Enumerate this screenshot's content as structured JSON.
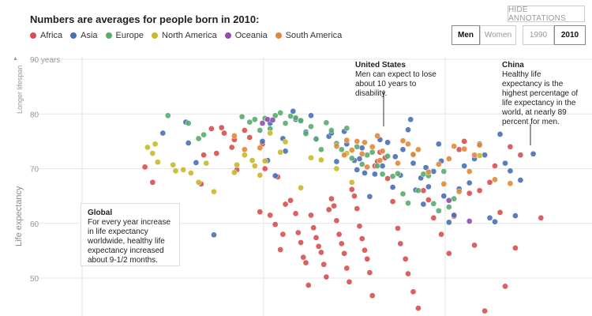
{
  "heading": "Numbers are averages for people born in 2010:",
  "legend": [
    {
      "label": "Africa",
      "color": "#d94f4f"
    },
    {
      "label": "Asia",
      "color": "#4a6fb5"
    },
    {
      "label": "Europe",
      "color": "#5aab6e"
    },
    {
      "label": "North America",
      "color": "#c9b82a"
    },
    {
      "label": "Oceania",
      "color": "#8e4fb0"
    },
    {
      "label": "South America",
      "color": "#e0883a"
    }
  ],
  "controls": {
    "hide_annotations": "HIDE ANNOTATIONS",
    "men": "Men",
    "women": "Women",
    "year_1990": "1990",
    "year_2010": "2010"
  },
  "y_axis": {
    "label": "Life expectancy",
    "sublabel": "Longer lifespan",
    "ticks": [
      "90 years",
      "80",
      "70",
      "60",
      "50"
    ]
  },
  "annotations": {
    "us": {
      "title": "United States",
      "text": "Men can expect to lose about 10 years to disability."
    },
    "china": {
      "title": "China",
      "text": "Healthy life expectancy is the highest percentage of life expectancy in the world, at nearly 89 percent for men."
    },
    "global": {
      "title": "Global",
      "text": "For every year increase in life expectancy worldwide, healthy life expectancy increased about 9-1/2 months."
    }
  },
  "chart_data": {
    "type": "scatter",
    "ylabel": "Life expectancy",
    "ylim": [
      45,
      90
    ],
    "grid": true,
    "series": [
      {
        "name": "Africa",
        "color": "#d94f4f",
        "points": [
          [
            22.5,
            70.3
          ],
          [
            24,
            67.5
          ],
          [
            33.5,
            67.2
          ],
          [
            34,
            72.5
          ],
          [
            35.5,
            77.3
          ],
          [
            36.5,
            72.8
          ],
          [
            37.5,
            77.5
          ],
          [
            38,
            76.5
          ],
          [
            39.5,
            73.9
          ],
          [
            40,
            75.3
          ],
          [
            40.5,
            69.8
          ],
          [
            42,
            77
          ],
          [
            43,
            75.7
          ],
          [
            45,
            62.1
          ],
          [
            45.5,
            74.5
          ],
          [
            46,
            70
          ],
          [
            47,
            61.5
          ],
          [
            48,
            59.8
          ],
          [
            48.5,
            68.5
          ],
          [
            49,
            55.2
          ],
          [
            49.5,
            58
          ],
          [
            50,
            63.5
          ],
          [
            51,
            64.2
          ],
          [
            52,
            61.8
          ],
          [
            52.5,
            58.3
          ],
          [
            53,
            56.5
          ],
          [
            53.5,
            53.8
          ],
          [
            54,
            52.8
          ],
          [
            54.5,
            48.7
          ],
          [
            55,
            61.5
          ],
          [
            55.5,
            59.2
          ],
          [
            56,
            57.4
          ],
          [
            56.5,
            55.8
          ],
          [
            57,
            54.7
          ],
          [
            57.5,
            52.5
          ],
          [
            58,
            50.2
          ],
          [
            58.5,
            62.5
          ],
          [
            59,
            64.5
          ],
          [
            59.5,
            63.2
          ],
          [
            60,
            60.5
          ],
          [
            60.5,
            58
          ],
          [
            61,
            56.3
          ],
          [
            61.5,
            54.5
          ],
          [
            62,
            51.8
          ],
          [
            62.5,
            49.3
          ],
          [
            63,
            66.2
          ],
          [
            63.5,
            65
          ],
          [
            64,
            62.7
          ],
          [
            64.5,
            59.5
          ],
          [
            65,
            57.2
          ],
          [
            65.5,
            55.1
          ],
          [
            66,
            53.5
          ],
          [
            66.5,
            51
          ],
          [
            67,
            46.8
          ],
          [
            67.5,
            70.5
          ],
          [
            68,
            71.3
          ],
          [
            68.5,
            73
          ],
          [
            69.5,
            72
          ],
          [
            70,
            68.2
          ],
          [
            71,
            64
          ],
          [
            72,
            59.1
          ],
          [
            72.5,
            56.3
          ],
          [
            73.5,
            53.5
          ],
          [
            74,
            50.8
          ],
          [
            75,
            47.5
          ],
          [
            76,
            44.5
          ],
          [
            77,
            66
          ],
          [
            78,
            64.3
          ],
          [
            79,
            61
          ],
          [
            80.5,
            58
          ],
          [
            82,
            54.5
          ],
          [
            83,
            61.3
          ],
          [
            84,
            73.5
          ],
          [
            85,
            75
          ],
          [
            86,
            65.5
          ],
          [
            87,
            56
          ],
          [
            88,
            66
          ],
          [
            89,
            44
          ],
          [
            90,
            67.5
          ],
          [
            91,
            70.5
          ],
          [
            92,
            62
          ],
          [
            93,
            48.5
          ],
          [
            94,
            74
          ],
          [
            95,
            55.5
          ],
          [
            96,
            72.5
          ],
          [
            100,
            61
          ]
        ]
      },
      {
        "name": "Asia",
        "color": "#4a6fb5",
        "points": [
          [
            26,
            76.5
          ],
          [
            30.5,
            78.5
          ],
          [
            31,
            74.7
          ],
          [
            32.5,
            71.1
          ],
          [
            36,
            57.9
          ],
          [
            45.5,
            75
          ],
          [
            46.5,
            71.5
          ],
          [
            47,
            78.3
          ],
          [
            48,
            68.7
          ],
          [
            49.5,
            75.5
          ],
          [
            50,
            73.2
          ],
          [
            51.5,
            80.5
          ],
          [
            52,
            79
          ],
          [
            53,
            78.7
          ],
          [
            54,
            76.7
          ],
          [
            55,
            79.7
          ],
          [
            56,
            75.5
          ],
          [
            58.5,
            75.9
          ],
          [
            59,
            76.5
          ],
          [
            60,
            71.3
          ],
          [
            61.5,
            76.8
          ],
          [
            62,
            74.5
          ],
          [
            63.5,
            71.5
          ],
          [
            64,
            69.8
          ],
          [
            64.5,
            71.8
          ],
          [
            65,
            73.8
          ],
          [
            65.5,
            69.2
          ],
          [
            66.5,
            64.9
          ],
          [
            67.5,
            69
          ],
          [
            68.5,
            75.3
          ],
          [
            69,
            70.5
          ],
          [
            70,
            74.8
          ],
          [
            71,
            66.6
          ],
          [
            71.5,
            72.2
          ],
          [
            72.5,
            68.8
          ],
          [
            73,
            73.5
          ],
          [
            74,
            77.1
          ],
          [
            74.5,
            79
          ],
          [
            75,
            71
          ],
          [
            75.5,
            66.1
          ],
          [
            76.5,
            68.3
          ],
          [
            77,
            63.5
          ],
          [
            77.5,
            70.2
          ],
          [
            78,
            66.7
          ],
          [
            79,
            69.5
          ],
          [
            80,
            74.5
          ],
          [
            80.5,
            71.4
          ],
          [
            81,
            65
          ],
          [
            82,
            60.2
          ],
          [
            83,
            61.5
          ],
          [
            84,
            66.3
          ],
          [
            85,
            70.5
          ],
          [
            86,
            67.4
          ],
          [
            87,
            71.8
          ],
          [
            88,
            74.5
          ],
          [
            89,
            72.5
          ],
          [
            90,
            61
          ],
          [
            91,
            60.3
          ],
          [
            92,
            76.3
          ],
          [
            93,
            71
          ],
          [
            94,
            69.6
          ],
          [
            95,
            61.4
          ],
          [
            96,
            67.9
          ],
          [
            98.5,
            72.7
          ]
        ]
      },
      {
        "name": "Europe",
        "color": "#5aab6e",
        "points": [
          [
            27,
            79.7
          ],
          [
            31,
            78.3
          ],
          [
            33,
            75.5
          ],
          [
            34,
            76.2
          ],
          [
            41.5,
            79.5
          ],
          [
            43,
            78.5
          ],
          [
            44,
            79
          ],
          [
            45,
            77
          ],
          [
            46,
            79.2
          ],
          [
            47,
            77.3
          ],
          [
            48,
            79.7
          ],
          [
            49,
            80.2
          ],
          [
            50,
            78.3
          ],
          [
            51,
            79.6
          ],
          [
            52,
            79.3
          ],
          [
            53,
            78.8
          ],
          [
            54,
            76.4
          ],
          [
            55,
            77.7
          ],
          [
            56,
            75.4
          ],
          [
            57,
            73.5
          ],
          [
            58,
            78.4
          ],
          [
            59,
            77
          ],
          [
            60,
            74.6
          ],
          [
            61,
            73.5
          ],
          [
            62,
            77.4
          ],
          [
            63,
            71.9
          ],
          [
            64,
            74
          ],
          [
            65,
            70.8
          ],
          [
            66,
            72.5
          ],
          [
            67,
            73
          ],
          [
            68,
            70.5
          ],
          [
            69,
            69
          ],
          [
            70,
            72.3
          ],
          [
            71,
            68.6
          ],
          [
            72,
            69.1
          ],
          [
            73,
            65.4
          ],
          [
            74,
            63.7
          ],
          [
            75,
            72.5
          ],
          [
            76,
            66
          ],
          [
            77,
            69
          ],
          [
            78,
            68.7
          ],
          [
            79,
            63.6
          ],
          [
            80,
            62.3
          ],
          [
            81,
            69.5
          ],
          [
            82,
            63
          ],
          [
            83,
            64.5
          ]
        ]
      },
      {
        "name": "North America",
        "color": "#c9b82a",
        "points": [
          [
            23,
            73.9
          ],
          [
            24,
            72.8
          ],
          [
            24.5,
            74.5
          ],
          [
            25,
            71.2
          ],
          [
            28,
            70.7
          ],
          [
            28.5,
            69.6
          ],
          [
            30,
            69.8
          ],
          [
            31.5,
            69.2
          ],
          [
            33,
            67.5
          ],
          [
            34.5,
            71
          ],
          [
            36,
            65.8
          ],
          [
            40,
            69.3
          ],
          [
            40.5,
            70.7
          ],
          [
            42,
            72.5
          ],
          [
            43.5,
            71.5
          ],
          [
            44,
            70.5
          ],
          [
            45,
            68.8
          ],
          [
            46,
            71.4
          ],
          [
            47,
            76.5
          ],
          [
            49,
            73
          ],
          [
            50,
            74.9
          ],
          [
            53,
            66.5
          ],
          [
            55,
            72
          ],
          [
            57,
            71.6
          ],
          [
            60,
            70
          ],
          [
            62,
            72.8
          ],
          [
            63,
            67.5
          ],
          [
            88,
            72.4
          ]
        ]
      },
      {
        "name": "Oceania",
        "color": "#8e4fb0",
        "points": [
          [
            45.5,
            78.3
          ],
          [
            46.5,
            79
          ],
          [
            47.5,
            78.9
          ],
          [
            82,
            64.2
          ],
          [
            86,
            60.4
          ]
        ]
      },
      {
        "name": "South America",
        "color": "#e0883a",
        "points": [
          [
            40,
            76
          ],
          [
            42,
            73.5
          ],
          [
            45,
            73.8
          ],
          [
            60,
            74.1
          ],
          [
            61.5,
            72.5
          ],
          [
            62,
            75.2
          ],
          [
            63,
            73.4
          ],
          [
            64,
            75
          ],
          [
            65,
            72.7
          ],
          [
            65.5,
            74.8
          ],
          [
            66,
            70.3
          ],
          [
            67,
            74
          ],
          [
            68,
            76
          ],
          [
            68.5,
            71.5
          ],
          [
            69,
            73.2
          ],
          [
            72,
            71
          ],
          [
            73,
            75.1
          ],
          [
            74,
            74.5
          ],
          [
            75,
            72.6
          ],
          [
            76,
            73.5
          ],
          [
            78,
            69.4
          ],
          [
            80,
            70.8
          ],
          [
            81,
            67.2
          ],
          [
            82,
            71.8
          ],
          [
            83,
            74.1
          ],
          [
            84,
            65.8
          ],
          [
            85,
            73.6
          ],
          [
            86,
            69.5
          ],
          [
            87,
            72.5
          ],
          [
            88,
            74.3
          ],
          [
            91,
            68
          ],
          [
            94,
            67.3
          ]
        ]
      }
    ]
  }
}
